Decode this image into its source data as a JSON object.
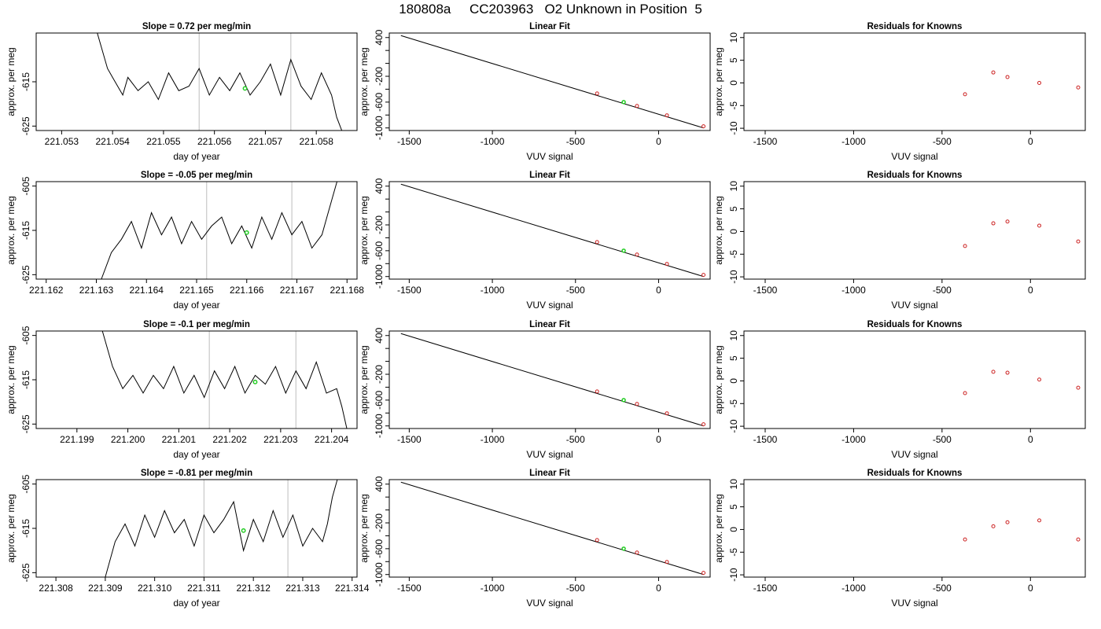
{
  "figure": {
    "title": "180808a     CC203963   O2 Unknown in Position  5"
  },
  "styles": {
    "trace_color": "#000000",
    "unknown_color": "#22cc22",
    "known_color": "#cc2222",
    "marker_color": "#c8c8c8",
    "fit_line_color": "#000000"
  },
  "chart_data": [
    {
      "type": "line",
      "panel": "timeseries-1",
      "title": "Slope =  0.72  per meg/min",
      "xlabel": "day of year",
      "ylabel": "approx. per meg",
      "xlim": [
        221.0525,
        221.0588
      ],
      "ylim": [
        -626,
        -604
      ],
      "xticks": [
        221.053,
        221.054,
        221.055,
        221.056,
        221.057,
        221.058
      ],
      "xtick_labels": [
        "221.053",
        "221.054",
        "221.055",
        "221.056",
        "221.057",
        "221.058"
      ],
      "yticks": [
        -625,
        -615
      ],
      "ytick_labels": [
        "-625",
        "-615"
      ],
      "vertical_markers": [
        221.0557,
        221.0575
      ],
      "unknown_point": {
        "x": 221.0566,
        "y": -616.5
      },
      "series": [
        {
          "x": [
            221.0537,
            221.0539,
            221.054,
            221.0541,
            221.0542,
            221.0543,
            221.0545,
            221.0547,
            221.0549,
            221.0551,
            221.0553,
            221.0555,
            221.0557,
            221.0559,
            221.0561,
            221.0563,
            221.0565,
            221.0567,
            221.0569,
            221.0571,
            221.0573,
            221.0575,
            221.0577,
            221.0579,
            221.0581,
            221.0583,
            221.0584,
            221.0585
          ],
          "y": [
            -604,
            -612,
            -614,
            -616,
            -618,
            -614,
            -617,
            -615,
            -619,
            -613,
            -617,
            -616,
            -612,
            -618,
            -614,
            -617,
            -613,
            -618,
            -615,
            -611,
            -618,
            -610,
            -616,
            -619,
            -613,
            -618,
            -623,
            -626
          ]
        }
      ]
    },
    {
      "type": "line",
      "panel": "linearfit-1",
      "title": "Linear Fit",
      "xlabel": "VUV signal",
      "ylabel": "approx. per meg",
      "xlim": [
        -1620,
        310
      ],
      "ylim": [
        -1040,
        470
      ],
      "xticks": [
        -1500,
        -1000,
        -500,
        0
      ],
      "xtick_labels": [
        "-1500",
        "-1000",
        "-500",
        "0"
      ],
      "yticks": [
        -1000,
        -800,
        -600,
        -400,
        -200,
        0,
        200,
        400
      ],
      "ytick_labels": [
        "-1000",
        "",
        "-600",
        "",
        "-200",
        "",
        "",
        "400"
      ],
      "fit_line": {
        "x": [
          -1550,
          270
        ],
        "y": [
          430,
          -1000
        ]
      },
      "knowns": {
        "x": [
          -370,
          -130,
          50,
          270
        ],
        "y": [
          -466,
          -660,
          -805,
          -975
        ]
      },
      "unknown": {
        "x": -210,
        "y": -600
      }
    },
    {
      "type": "scatter",
      "panel": "residuals-1",
      "title": "Residuals for Knowns",
      "xlabel": "VUV signal",
      "ylabel": "approx. per meg",
      "xlim": [
        -1620,
        310
      ],
      "ylim": [
        -10.5,
        11
      ],
      "xticks": [
        -1500,
        -1000,
        -500,
        0
      ],
      "xtick_labels": [
        "-1500",
        "-1000",
        "-500",
        "0"
      ],
      "yticks": [
        -10,
        -5,
        0,
        5,
        10
      ],
      "ytick_labels": [
        "-10",
        "-5",
        "0",
        "5",
        "10"
      ],
      "x": [
        -370,
        -210,
        -130,
        50,
        270
      ],
      "y": [
        -2.5,
        2.3,
        1.3,
        0.0,
        -1.0
      ]
    },
    {
      "type": "line",
      "panel": "timeseries-2",
      "title": "Slope =  -0.05  per meg/min",
      "xlabel": "day of year",
      "ylabel": "approx. per meg",
      "xlim": [
        221.1618,
        221.1682
      ],
      "ylim": [
        -626,
        -604
      ],
      "xticks": [
        221.162,
        221.163,
        221.164,
        221.165,
        221.166,
        221.167,
        221.168
      ],
      "xtick_labels": [
        "221.162",
        "221.163",
        "221.164",
        "221.165",
        "221.166",
        "221.167",
        "221.168"
      ],
      "yticks": [
        -625,
        -615,
        -605
      ],
      "ytick_labels": [
        "-625",
        "-615",
        "-605"
      ],
      "vertical_markers": [
        221.1652,
        221.1669
      ],
      "unknown_point": {
        "x": 221.166,
        "y": -615.5
      },
      "series": [
        {
          "x": [
            221.1631,
            221.1633,
            221.1635,
            221.1637,
            221.1639,
            221.1641,
            221.1643,
            221.1645,
            221.1647,
            221.1649,
            221.1651,
            221.1653,
            221.1655,
            221.1657,
            221.1659,
            221.1661,
            221.1663,
            221.1665,
            221.1667,
            221.1669,
            221.1671,
            221.1673,
            221.1675,
            221.1676,
            221.1677,
            221.1678
          ],
          "y": [
            -626,
            -620,
            -617,
            -613,
            -619,
            -611,
            -616,
            -612,
            -618,
            -613,
            -617,
            -614,
            -612,
            -618,
            -614,
            -619,
            -612,
            -617,
            -611,
            -616,
            -613,
            -619,
            -616,
            -612,
            -608,
            -604
          ]
        }
      ]
    },
    {
      "type": "line",
      "panel": "linearfit-2",
      "title": "Linear Fit",
      "xlabel": "VUV signal",
      "ylabel": "approx. per meg",
      "xlim": [
        -1620,
        310
      ],
      "ylim": [
        -1040,
        470
      ],
      "xticks": [
        -1500,
        -1000,
        -500,
        0
      ],
      "xtick_labels": [
        "-1500",
        "-1000",
        "-500",
        "0"
      ],
      "yticks": [
        -1000,
        -800,
        -600,
        -400,
        -200,
        0,
        200,
        400
      ],
      "ytick_labels": [
        "-1000",
        "",
        "-600",
        "",
        "-200",
        "",
        "",
        "400"
      ],
      "fit_line": {
        "x": [
          -1550,
          270
        ],
        "y": [
          430,
          -1000
        ]
      },
      "knowns": {
        "x": [
          -370,
          -130,
          50,
          270
        ],
        "y": [
          -466,
          -660,
          -805,
          -975
        ]
      },
      "unknown": {
        "x": -210,
        "y": -600
      }
    },
    {
      "type": "scatter",
      "panel": "residuals-2",
      "title": "Residuals for Knowns",
      "xlabel": "VUV signal",
      "ylabel": "approx. per meg",
      "xlim": [
        -1620,
        310
      ],
      "ylim": [
        -10.5,
        11
      ],
      "xticks": [
        -1500,
        -1000,
        -500,
        0
      ],
      "xtick_labels": [
        "-1500",
        "-1000",
        "-500",
        "0"
      ],
      "yticks": [
        -10,
        -5,
        0,
        5,
        10
      ],
      "ytick_labels": [
        "-10",
        "-5",
        "0",
        "5",
        "10"
      ],
      "x": [
        -370,
        -210,
        -130,
        50,
        270
      ],
      "y": [
        -3.2,
        1.8,
        2.2,
        1.3,
        -2.2
      ]
    },
    {
      "type": "line",
      "panel": "timeseries-3",
      "title": "Slope =  -0.1  per meg/min",
      "xlabel": "day of year",
      "ylabel": "approx. per meg",
      "xlim": [
        221.1982,
        221.2045
      ],
      "ylim": [
        -626,
        -604
      ],
      "xticks": [
        221.199,
        221.2,
        221.201,
        221.202,
        221.203,
        221.204
      ],
      "xtick_labels": [
        "221.199",
        "221.200",
        "221.201",
        "221.202",
        "221.203",
        "221.204"
      ],
      "yticks": [
        -625,
        -615,
        -605
      ],
      "ytick_labels": [
        "-625",
        "-615",
        "-605"
      ],
      "vertical_markers": [
        221.2016,
        221.2033
      ],
      "unknown_point": {
        "x": 221.2025,
        "y": -615.5
      },
      "series": [
        {
          "x": [
            221.1995,
            221.1997,
            221.1999,
            221.2001,
            221.2003,
            221.2005,
            221.2007,
            221.2009,
            221.2011,
            221.2013,
            221.2015,
            221.2017,
            221.2019,
            221.2021,
            221.2023,
            221.2025,
            221.2027,
            221.2029,
            221.2031,
            221.2033,
            221.2035,
            221.2037,
            221.2039,
            221.2041,
            221.2042,
            221.2043
          ],
          "y": [
            -604,
            -612,
            -617,
            -614,
            -618,
            -614,
            -617,
            -612,
            -618,
            -614,
            -619,
            -613,
            -617,
            -612,
            -618,
            -614,
            -616,
            -612,
            -618,
            -613,
            -617,
            -611,
            -618,
            -617,
            -621,
            -626
          ]
        }
      ]
    },
    {
      "type": "line",
      "panel": "linearfit-3",
      "title": "Linear Fit",
      "xlabel": "VUV signal",
      "ylabel": "approx. per meg",
      "xlim": [
        -1620,
        310
      ],
      "ylim": [
        -1040,
        470
      ],
      "xticks": [
        -1500,
        -1000,
        -500,
        0
      ],
      "xtick_labels": [
        "-1500",
        "-1000",
        "-500",
        "0"
      ],
      "yticks": [
        -1000,
        -800,
        -600,
        -400,
        -200,
        0,
        200,
        400
      ],
      "ytick_labels": [
        "-1000",
        "",
        "-600",
        "",
        "-200",
        "",
        "",
        "400"
      ],
      "fit_line": {
        "x": [
          -1550,
          270
        ],
        "y": [
          430,
          -1000
        ]
      },
      "knowns": {
        "x": [
          -370,
          -130,
          50,
          270
        ],
        "y": [
          -466,
          -660,
          -805,
          -975
        ]
      },
      "unknown": {
        "x": -210,
        "y": -600
      }
    },
    {
      "type": "scatter",
      "panel": "residuals-3",
      "title": "Residuals for Knowns",
      "xlabel": "VUV signal",
      "ylabel": "approx. per meg",
      "xlim": [
        -1620,
        310
      ],
      "ylim": [
        -10.5,
        11
      ],
      "xticks": [
        -1500,
        -1000,
        -500,
        0
      ],
      "xtick_labels": [
        "-1500",
        "-1000",
        "-500",
        "0"
      ],
      "yticks": [
        -10,
        -5,
        0,
        5,
        10
      ],
      "ytick_labels": [
        "-10",
        "-5",
        "0",
        "5",
        "10"
      ],
      "x": [
        -370,
        -210,
        -130,
        50,
        270
      ],
      "y": [
        -2.7,
        2.0,
        1.8,
        0.3,
        -1.5
      ]
    },
    {
      "type": "line",
      "panel": "timeseries-4",
      "title": "Slope =  -0.81  per meg/min",
      "xlabel": "day of year",
      "ylabel": "approx. per meg",
      "xlim": [
        221.3076,
        221.3141
      ],
      "ylim": [
        -626,
        -604
      ],
      "xticks": [
        221.308,
        221.309,
        221.31,
        221.311,
        221.312,
        221.313,
        221.314
      ],
      "xtick_labels": [
        "221.308",
        "221.309",
        "221.310",
        "221.311",
        "221.312",
        "221.313",
        "221.314"
      ],
      "yticks": [
        -625,
        -615,
        -605
      ],
      "ytick_labels": [
        "-625",
        "-615",
        "-605"
      ],
      "vertical_markers": [
        221.311,
        221.3127
      ],
      "unknown_point": {
        "x": 221.3118,
        "y": -615.5
      },
      "series": [
        {
          "x": [
            221.309,
            221.3092,
            221.3094,
            221.3096,
            221.3098,
            221.31,
            221.3102,
            221.3104,
            221.3106,
            221.3108,
            221.311,
            221.3112,
            221.3114,
            221.3116,
            221.3118,
            221.312,
            221.3122,
            221.3124,
            221.3126,
            221.3128,
            221.313,
            221.3132,
            221.3134,
            221.3135,
            221.3136,
            221.3137
          ],
          "y": [
            -626,
            -618,
            -614,
            -619,
            -612,
            -617,
            -611,
            -616,
            -613,
            -619,
            -612,
            -616,
            -613,
            -609,
            -620,
            -613,
            -618,
            -611,
            -617,
            -612,
            -619,
            -615,
            -618,
            -614,
            -608,
            -604
          ]
        }
      ]
    },
    {
      "type": "line",
      "panel": "linearfit-4",
      "title": "Linear Fit",
      "xlabel": "VUV signal",
      "ylabel": "approx. per meg",
      "xlim": [
        -1620,
        310
      ],
      "ylim": [
        -1040,
        470
      ],
      "xticks": [
        -1500,
        -1000,
        -500,
        0
      ],
      "xtick_labels": [
        "-1500",
        "-1000",
        "-500",
        "0"
      ],
      "yticks": [
        -1000,
        -800,
        -600,
        -400,
        -200,
        0,
        200,
        400
      ],
      "ytick_labels": [
        "-1000",
        "",
        "-600",
        "",
        "-200",
        "",
        "",
        "400"
      ],
      "fit_line": {
        "x": [
          -1550,
          270
        ],
        "y": [
          430,
          -1000
        ]
      },
      "knowns": {
        "x": [
          -370,
          -130,
          50,
          270
        ],
        "y": [
          -466,
          -660,
          -805,
          -975
        ]
      },
      "unknown": {
        "x": -210,
        "y": -600
      }
    },
    {
      "type": "scatter",
      "panel": "residuals-4",
      "title": "Residuals for Knowns",
      "xlabel": "VUV signal",
      "ylabel": "approx. per meg",
      "xlim": [
        -1620,
        310
      ],
      "ylim": [
        -10.5,
        11
      ],
      "xticks": [
        -1500,
        -1000,
        -500,
        0
      ],
      "xtick_labels": [
        "-1500",
        "-1000",
        "-500",
        "0"
      ],
      "yticks": [
        -10,
        -5,
        0,
        5,
        10
      ],
      "ytick_labels": [
        "-10",
        "-5",
        "0",
        "5",
        "10"
      ],
      "x": [
        -370,
        -210,
        -130,
        50,
        270
      ],
      "y": [
        -2.2,
        0.7,
        1.6,
        2.0,
        -2.2
      ]
    }
  ]
}
